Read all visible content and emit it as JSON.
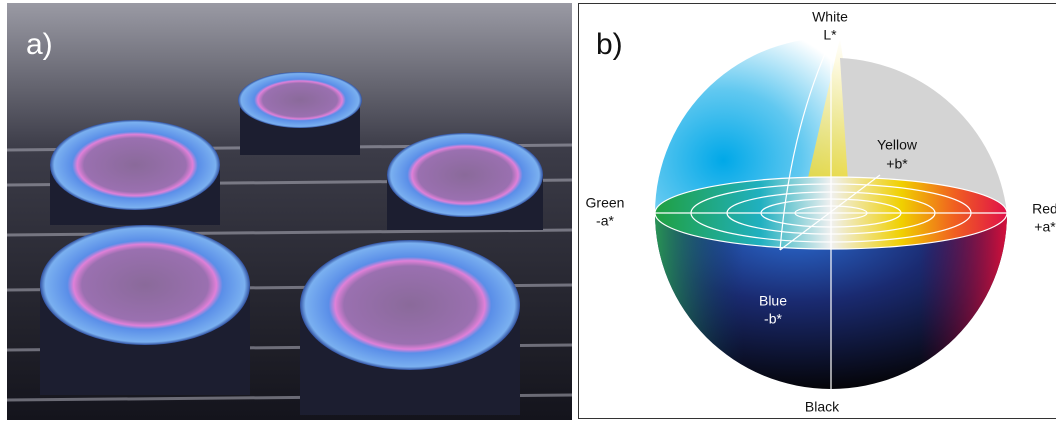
{
  "panel_a": {
    "label": "a)"
  },
  "panel_b": {
    "label": "b)",
    "white": {
      "name": "White",
      "symbol": "L*"
    },
    "yellow": {
      "name": "Yellow",
      "symbol": "+b*"
    },
    "green": {
      "name": "Green",
      "symbol": "-a*"
    },
    "red": {
      "name": "Red",
      "symbol": "+a*"
    },
    "blue": {
      "name": "Blue",
      "symbol": "-b*"
    },
    "black": {
      "name": "Black"
    }
  }
}
